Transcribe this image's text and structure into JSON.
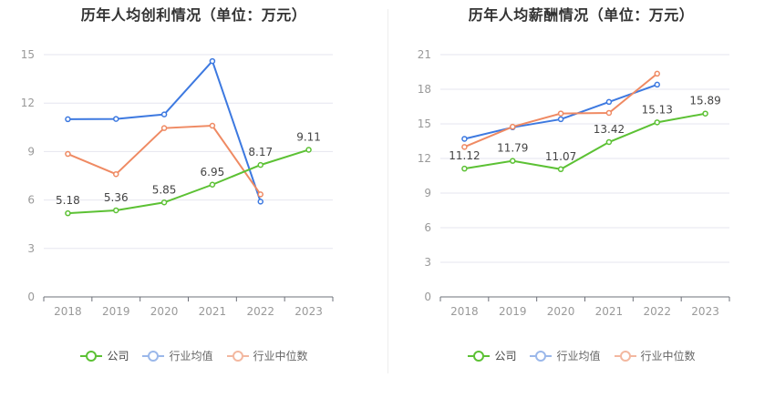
{
  "chart_data": [
    {
      "type": "line",
      "title": "历年人均创利情况（单位：万元）",
      "categories": [
        "2018",
        "2019",
        "2020",
        "2021",
        "2022",
        "2023"
      ],
      "ylim": [
        0,
        15
      ],
      "yticks": [
        0,
        3,
        6,
        9,
        12,
        15
      ],
      "grid": true,
      "legend_position": "bottom",
      "series": [
        {
          "name": "公司",
          "color": "#5cc134",
          "values": [
            5.18,
            5.36,
            5.85,
            6.95,
            8.17,
            9.11
          ],
          "labels": [
            "5.18",
            "5.36",
            "5.85",
            "6.95",
            "8.17",
            "9.11"
          ]
        },
        {
          "name": "行业均值",
          "color": "#3d79e0",
          "values": [
            11.0,
            11.02,
            11.3,
            14.6,
            5.9,
            null
          ]
        },
        {
          "name": "行业中位数",
          "color": "#ef8a63",
          "values": [
            8.85,
            7.6,
            10.45,
            10.6,
            6.35,
            null
          ]
        }
      ]
    },
    {
      "type": "line",
      "title": "历年人均薪酬情况（单位：万元）",
      "categories": [
        "2018",
        "2019",
        "2020",
        "2021",
        "2022",
        "2023"
      ],
      "ylim": [
        0,
        21
      ],
      "yticks": [
        0,
        3,
        6,
        9,
        12,
        15,
        18,
        21
      ],
      "grid": true,
      "legend_position": "bottom",
      "series": [
        {
          "name": "公司",
          "color": "#5cc134",
          "values": [
            11.12,
            11.79,
            11.07,
            13.42,
            15.13,
            15.89
          ],
          "labels": [
            "11.12",
            "11.79",
            "11.07",
            "13.42",
            "15.13",
            "15.89"
          ]
        },
        {
          "name": "行业均值",
          "color": "#3d79e0",
          "values": [
            13.7,
            14.7,
            15.4,
            16.9,
            18.4,
            null
          ]
        },
        {
          "name": "行业中位数",
          "color": "#ef8a63",
          "values": [
            13.0,
            14.75,
            15.9,
            15.95,
            19.35,
            null
          ]
        }
      ]
    }
  ],
  "legend": [
    {
      "label": "公司",
      "color": "#5cc134"
    },
    {
      "label": "行业均值",
      "color": "#9bb8ea"
    },
    {
      "label": "行业中位数",
      "color": "#f3b8a0"
    }
  ]
}
